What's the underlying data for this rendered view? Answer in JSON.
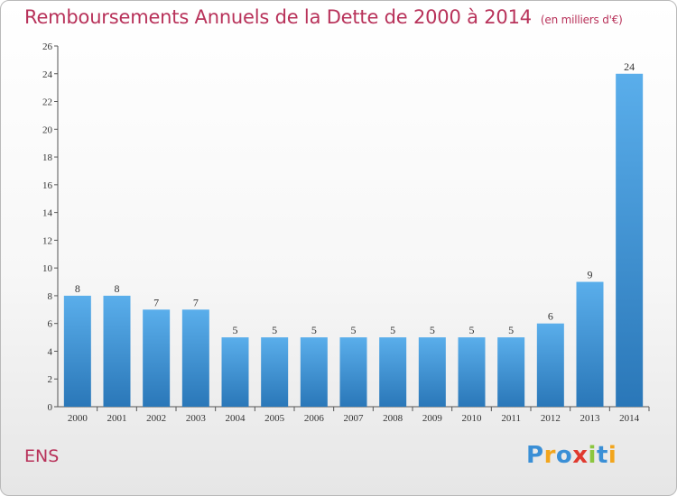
{
  "header": {
    "title": "Remboursements Annuels de la Dette de 2000 à 2014",
    "subtitle": "(en milliers d'€)"
  },
  "commune": "ENS",
  "logo": {
    "letters": [
      {
        "ch": "P",
        "color": "#3a8fd6"
      },
      {
        "ch": "r",
        "color": "#f2a51c"
      },
      {
        "ch": "o",
        "color": "#3a8fd6"
      },
      {
        "ch": "x",
        "color": "#e03a2f"
      },
      {
        "ch": "i",
        "color": "#8cc63f"
      },
      {
        "ch": "t",
        "color": "#3a8fd6"
      },
      {
        "ch": "i",
        "color": "#f2a51c"
      }
    ]
  },
  "chart_data": {
    "type": "bar",
    "categories": [
      "2000",
      "2001",
      "2002",
      "2003",
      "2004",
      "2005",
      "2006",
      "2007",
      "2008",
      "2009",
      "2010",
      "2011",
      "2012",
      "2013",
      "2014"
    ],
    "values": [
      8,
      8,
      7,
      7,
      5,
      5,
      5,
      5,
      5,
      5,
      5,
      5,
      6,
      9,
      24
    ],
    "ylim": [
      0,
      26
    ],
    "yticks": [
      0,
      2,
      4,
      6,
      8,
      10,
      12,
      14,
      16,
      18,
      20,
      22,
      24,
      26
    ],
    "grid": false,
    "colors": {
      "bar_light": "#5aaeeb",
      "bar_dark": "#2a77b8",
      "axis": "#555555",
      "text": "#333333"
    }
  }
}
